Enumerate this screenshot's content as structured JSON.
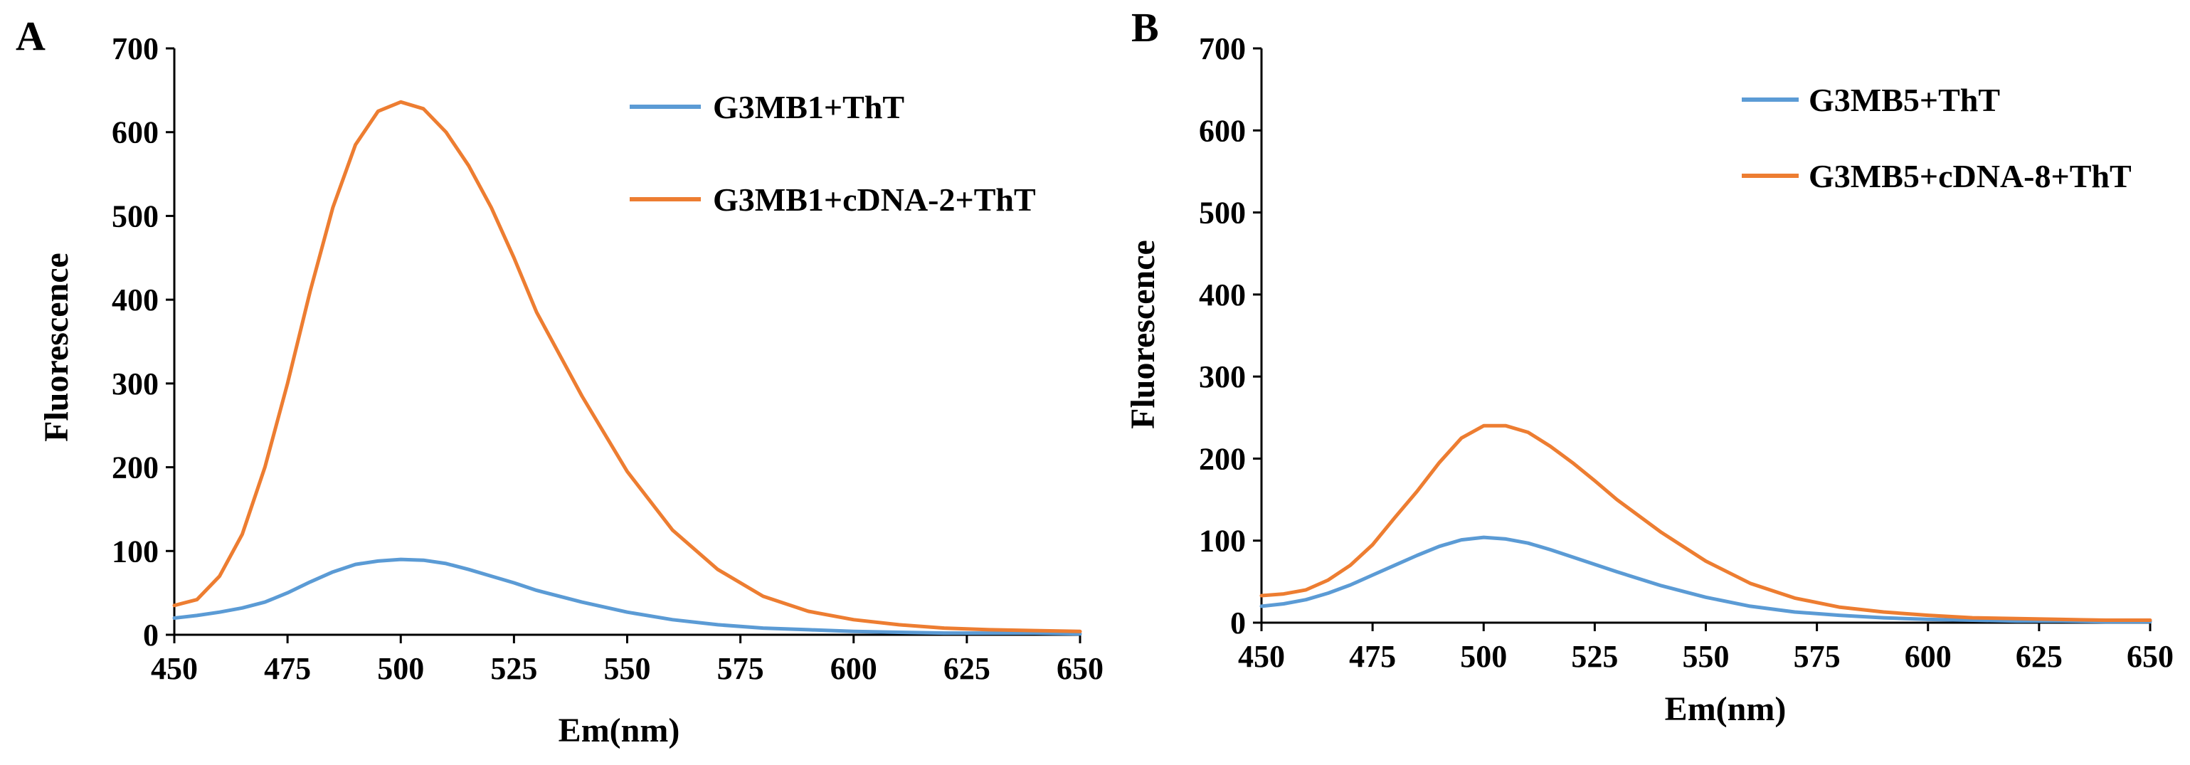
{
  "chart_data": [
    {
      "panel_label": "A",
      "type": "line",
      "xlabel": "Em(nm)",
      "ylabel": "Fluorescence",
      "xlim": [
        450,
        650
      ],
      "ylim": [
        0,
        700
      ],
      "xticks": [
        450,
        475,
        500,
        525,
        550,
        575,
        600,
        625,
        650
      ],
      "yticks": [
        0,
        100,
        200,
        300,
        400,
        500,
        600,
        700
      ],
      "legend_position": "top-right",
      "series": [
        {
          "name": "G3MB1+ThT",
          "color": "#5b9bd5",
          "x": [
            450,
            455,
            460,
            465,
            470,
            475,
            480,
            485,
            490,
            495,
            500,
            505,
            510,
            515,
            520,
            525,
            530,
            540,
            550,
            560,
            570,
            580,
            590,
            600,
            610,
            620,
            630,
            640,
            650
          ],
          "y": [
            20,
            23,
            27,
            32,
            39,
            50,
            63,
            75,
            84,
            88,
            90,
            89,
            85,
            78,
            70,
            62,
            53,
            39,
            27,
            18,
            12,
            8,
            6,
            4,
            3,
            2,
            2,
            2,
            1
          ]
        },
        {
          "name": "G3MB1+cDNA-2+ThT",
          "color": "#ed7d31",
          "x": [
            450,
            455,
            460,
            465,
            470,
            475,
            480,
            485,
            490,
            495,
            500,
            505,
            510,
            515,
            520,
            525,
            530,
            540,
            550,
            560,
            570,
            580,
            590,
            600,
            610,
            620,
            630,
            640,
            650
          ],
          "y": [
            35,
            42,
            70,
            120,
            200,
            300,
            410,
            510,
            585,
            625,
            636,
            628,
            600,
            560,
            510,
            450,
            385,
            285,
            195,
            125,
            78,
            46,
            28,
            18,
            12,
            8,
            6,
            5,
            4
          ]
        }
      ]
    },
    {
      "panel_label": "B",
      "type": "line",
      "xlabel": "Em(nm)",
      "ylabel": "Fluorescence",
      "xlim": [
        450,
        650
      ],
      "ylim": [
        0,
        700
      ],
      "xticks": [
        450,
        475,
        500,
        525,
        550,
        575,
        600,
        625,
        650
      ],
      "yticks": [
        0,
        100,
        200,
        300,
        400,
        500,
        600,
        700
      ],
      "legend_position": "top-right",
      "series": [
        {
          "name": "G3MB5+ThT",
          "color": "#5b9bd5",
          "x": [
            450,
            455,
            460,
            465,
            470,
            475,
            480,
            485,
            490,
            495,
            500,
            505,
            510,
            515,
            520,
            525,
            530,
            540,
            550,
            560,
            570,
            580,
            590,
            600,
            610,
            620,
            630,
            640,
            650
          ],
          "y": [
            20,
            23,
            28,
            36,
            46,
            58,
            70,
            82,
            93,
            101,
            104,
            102,
            97,
            89,
            80,
            71,
            62,
            45,
            31,
            20,
            13,
            9,
            6,
            4,
            3,
            2,
            2,
            1,
            1
          ]
        },
        {
          "name": "G3MB5+cDNA-8+ThT",
          "color": "#ed7d31",
          "x": [
            450,
            455,
            460,
            465,
            470,
            475,
            480,
            485,
            490,
            495,
            500,
            505,
            510,
            515,
            520,
            525,
            530,
            540,
            550,
            560,
            570,
            580,
            590,
            600,
            610,
            620,
            630,
            640,
            650
          ],
          "y": [
            33,
            35,
            40,
            52,
            70,
            95,
            128,
            160,
            195,
            225,
            240,
            240,
            232,
            215,
            195,
            173,
            150,
            110,
            75,
            48,
            30,
            19,
            13,
            9,
            6,
            5,
            4,
            3,
            3
          ]
        }
      ]
    }
  ]
}
